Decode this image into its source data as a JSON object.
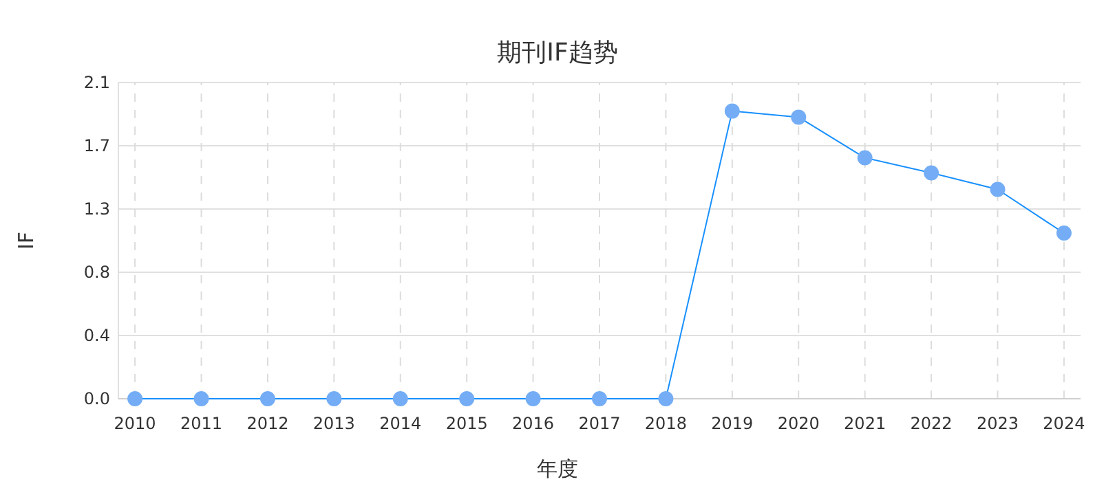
{
  "chart_data": {
    "type": "line",
    "title": "期刊IF趋势",
    "xlabel": "年度",
    "ylabel": "IF",
    "categories": [
      "2010",
      "2011",
      "2012",
      "2013",
      "2014",
      "2015",
      "2016",
      "2017",
      "2018",
      "2019",
      "2020",
      "2021",
      "2022",
      "2023",
      "2024"
    ],
    "series": [
      {
        "color": "#1890ff",
        "values": [
          0,
          0,
          0,
          0,
          0,
          0,
          0,
          0,
          0,
          1.91,
          1.87,
          1.6,
          1.5,
          1.39,
          1.1
        ]
      }
    ],
    "ylim": [
      0,
      2.1
    ],
    "yticks": [
      {
        "value": 0,
        "label": "0.0"
      },
      {
        "value": 0.42,
        "label": "0.4"
      },
      {
        "value": 0.84,
        "label": "0.8"
      },
      {
        "value": 1.26,
        "label": "1.3"
      },
      {
        "value": 1.68,
        "label": "1.7"
      },
      2.1
    ],
    "grid": true,
    "marker": "circle",
    "line_style": "solid"
  }
}
